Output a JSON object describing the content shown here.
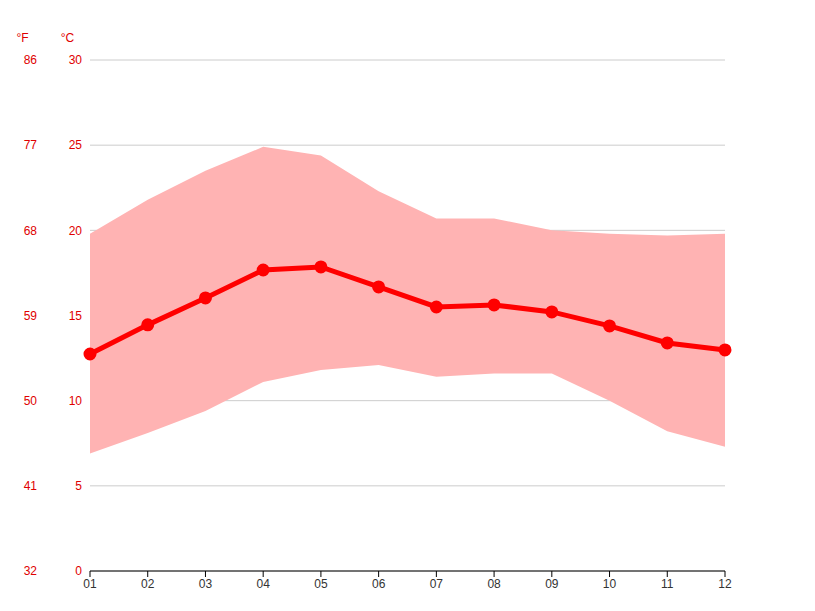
{
  "chart_data": {
    "type": "line",
    "y_label": "°C",
    "y2_label": "°F",
    "categories": [
      "01",
      "02",
      "03",
      "04",
      "05",
      "06",
      "07",
      "08",
      "09",
      "10",
      "11",
      "12"
    ],
    "series": [
      {
        "type": "range",
        "color": "#ffb3b3",
        "low": [
          6.9,
          8.1,
          9.4,
          11.1,
          11.8,
          12.1,
          11.4,
          11.6,
          11.6,
          10.0,
          8.2,
          7.3
        ],
        "high": [
          19.8,
          21.8,
          23.5,
          24.9,
          24.4,
          22.3,
          20.7,
          20.7,
          20.0,
          19.8,
          19.7,
          19.8
        ]
      },
      {
        "type": "line",
        "color": "#ff0000",
        "marker": "circle",
        "values": [
          12.74,
          14.45,
          16.03,
          17.67,
          17.85,
          16.68,
          15.5,
          15.62,
          15.21,
          14.39,
          13.39,
          12.98
        ]
      }
    ],
    "ylim": [
      0,
      30
    ],
    "yticks": [
      0,
      5,
      10,
      15,
      20,
      25,
      30
    ],
    "y2lim": [
      32,
      86
    ],
    "y2ticks": [
      32,
      41,
      50,
      59,
      68,
      77,
      86
    ],
    "grid": true
  }
}
